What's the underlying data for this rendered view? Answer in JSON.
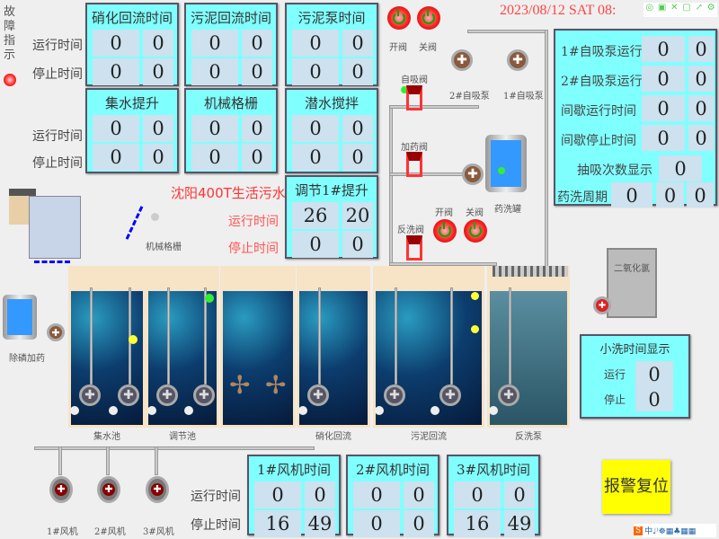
{
  "fault": {
    "label": "故障指示",
    "lamp_color": "#ff2222"
  },
  "row_labels": {
    "run": "运行时间",
    "stop": "停止时间"
  },
  "panels_top": [
    {
      "title": "硝化回流时间",
      "run": [
        "0",
        "0"
      ],
      "stop": [
        "0",
        "0"
      ]
    },
    {
      "title": "污泥回流时间",
      "run": [
        "0",
        "0"
      ],
      "stop": [
        "0",
        "0"
      ]
    },
    {
      "title": "污泥泵时间",
      "run": [
        "0",
        "0"
      ],
      "stop": [
        "0",
        "0"
      ]
    }
  ],
  "panels_mid": [
    {
      "title": "集水提升",
      "run": [
        "0",
        "0"
      ],
      "stop": [
        "0",
        "0"
      ]
    },
    {
      "title": "机械格栅",
      "run": [
        "0",
        "0"
      ],
      "stop": [
        "0",
        "0"
      ]
    },
    {
      "title": "潜水搅拌",
      "run": [
        "0",
        "0"
      ],
      "stop": [
        "0",
        "0"
      ]
    }
  ],
  "lift_panel": {
    "title": "调节1#提升",
    "run": [
      "26",
      "20"
    ],
    "stop": [
      "0",
      "0"
    ]
  },
  "plant_title": "沈阳400T生活污水",
  "screen_label": "机械格栅",
  "valves": {
    "open": "开阀",
    "close": "关阀",
    "self_priming": "自吸阀",
    "dosing": "加药阀",
    "backwash": "反洗阀"
  },
  "datetime": "2023/08/12  SAT  08:",
  "pumps": {
    "p2": "2#自吸泵",
    "p1": "1#自吸泵",
    "tank": "药洗罐",
    "dephos": "除磷加药",
    "clo2": "二氧化氯"
  },
  "right_panel": {
    "rows": [
      {
        "label": "1#自吸泵运行",
        "values": [
          "0",
          "0"
        ]
      },
      {
        "label": "2#自吸泵运行",
        "values": [
          "0",
          "0"
        ]
      },
      {
        "label": "间歇运行时间",
        "values": [
          "0",
          "0"
        ]
      },
      {
        "label": "间歇停止时间",
        "values": [
          "0",
          "0"
        ]
      }
    ],
    "suction_count": {
      "label": "抽吸次数显示",
      "value": "0"
    },
    "wash_cycle": {
      "label": "药洗周期",
      "values": [
        "0",
        "0",
        "0"
      ]
    }
  },
  "tanks": [
    "集水池",
    "调节池",
    "",
    "硝化回流",
    "污泥回流",
    "反洗泵"
  ],
  "small_wash": {
    "title": "小洗时间显示",
    "run_label": "运行",
    "run": "0",
    "stop_label": "停止",
    "stop": "0"
  },
  "fans": [
    "1#风机",
    "2#风机",
    "3#风机"
  ],
  "fan_panels": [
    {
      "title": "1#风机时间",
      "run": [
        "0",
        "0"
      ],
      "stop": [
        "16",
        "49"
      ]
    },
    {
      "title": "2#风机时间",
      "run": [
        "0",
        "0"
      ],
      "stop": [
        "0",
        "0"
      ]
    },
    {
      "title": "3#风机时间",
      "run": [
        "0",
        "0"
      ],
      "stop": [
        "16",
        "49"
      ]
    }
  ],
  "alarm_reset": "报警复位",
  "colors": {
    "panel": "#80ffff",
    "cell": "#cde1ee",
    "alarm": "#ffff00",
    "accent_red": "#ff3333"
  }
}
